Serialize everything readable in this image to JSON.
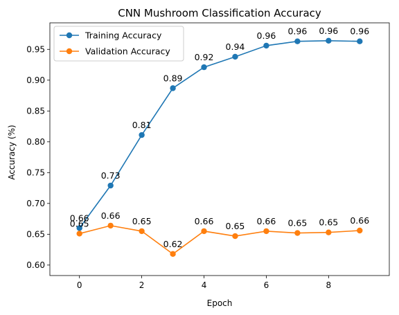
{
  "chart_data": {
    "type": "line",
    "title": "CNN Mushroom Classification Accuracy",
    "xlabel": "Epoch",
    "ylabel": "Accuracy (%)",
    "x": [
      0,
      1,
      2,
      3,
      4,
      5,
      6,
      7,
      8,
      9
    ],
    "xlim": [
      -0.95,
      9.95
    ],
    "ylim": [
      0.583,
      0.993
    ],
    "xticks": [
      0,
      2,
      4,
      6,
      8
    ],
    "yticks": [
      0.6,
      0.65,
      0.7,
      0.75,
      0.8,
      0.85,
      0.9,
      0.95
    ],
    "ytick_labels": [
      "0.60",
      "0.65",
      "0.70",
      "0.75",
      "0.80",
      "0.85",
      "0.90",
      "0.95"
    ],
    "grid": false,
    "legend_position": "upper-left",
    "series": [
      {
        "name": "Training Accuracy",
        "color": "#1f77b4",
        "values": [
          0.66,
          0.729,
          0.811,
          0.887,
          0.921,
          0.938,
          0.956,
          0.963,
          0.964,
          0.963
        ],
        "labels": [
          "0.66",
          "0.73",
          "0.81",
          "0.89",
          "0.92",
          "0.94",
          "0.96",
          "0.96",
          "0.96",
          "0.96"
        ]
      },
      {
        "name": "Validation Accuracy",
        "color": "#ff7f0e",
        "values": [
          0.651,
          0.664,
          0.655,
          0.618,
          0.655,
          0.647,
          0.655,
          0.652,
          0.653,
          0.656
        ],
        "labels": [
          "0.65",
          "0.66",
          "0.65",
          "0.62",
          "0.66",
          "0.65",
          "0.66",
          "0.65",
          "0.65",
          "0.66"
        ]
      }
    ]
  }
}
